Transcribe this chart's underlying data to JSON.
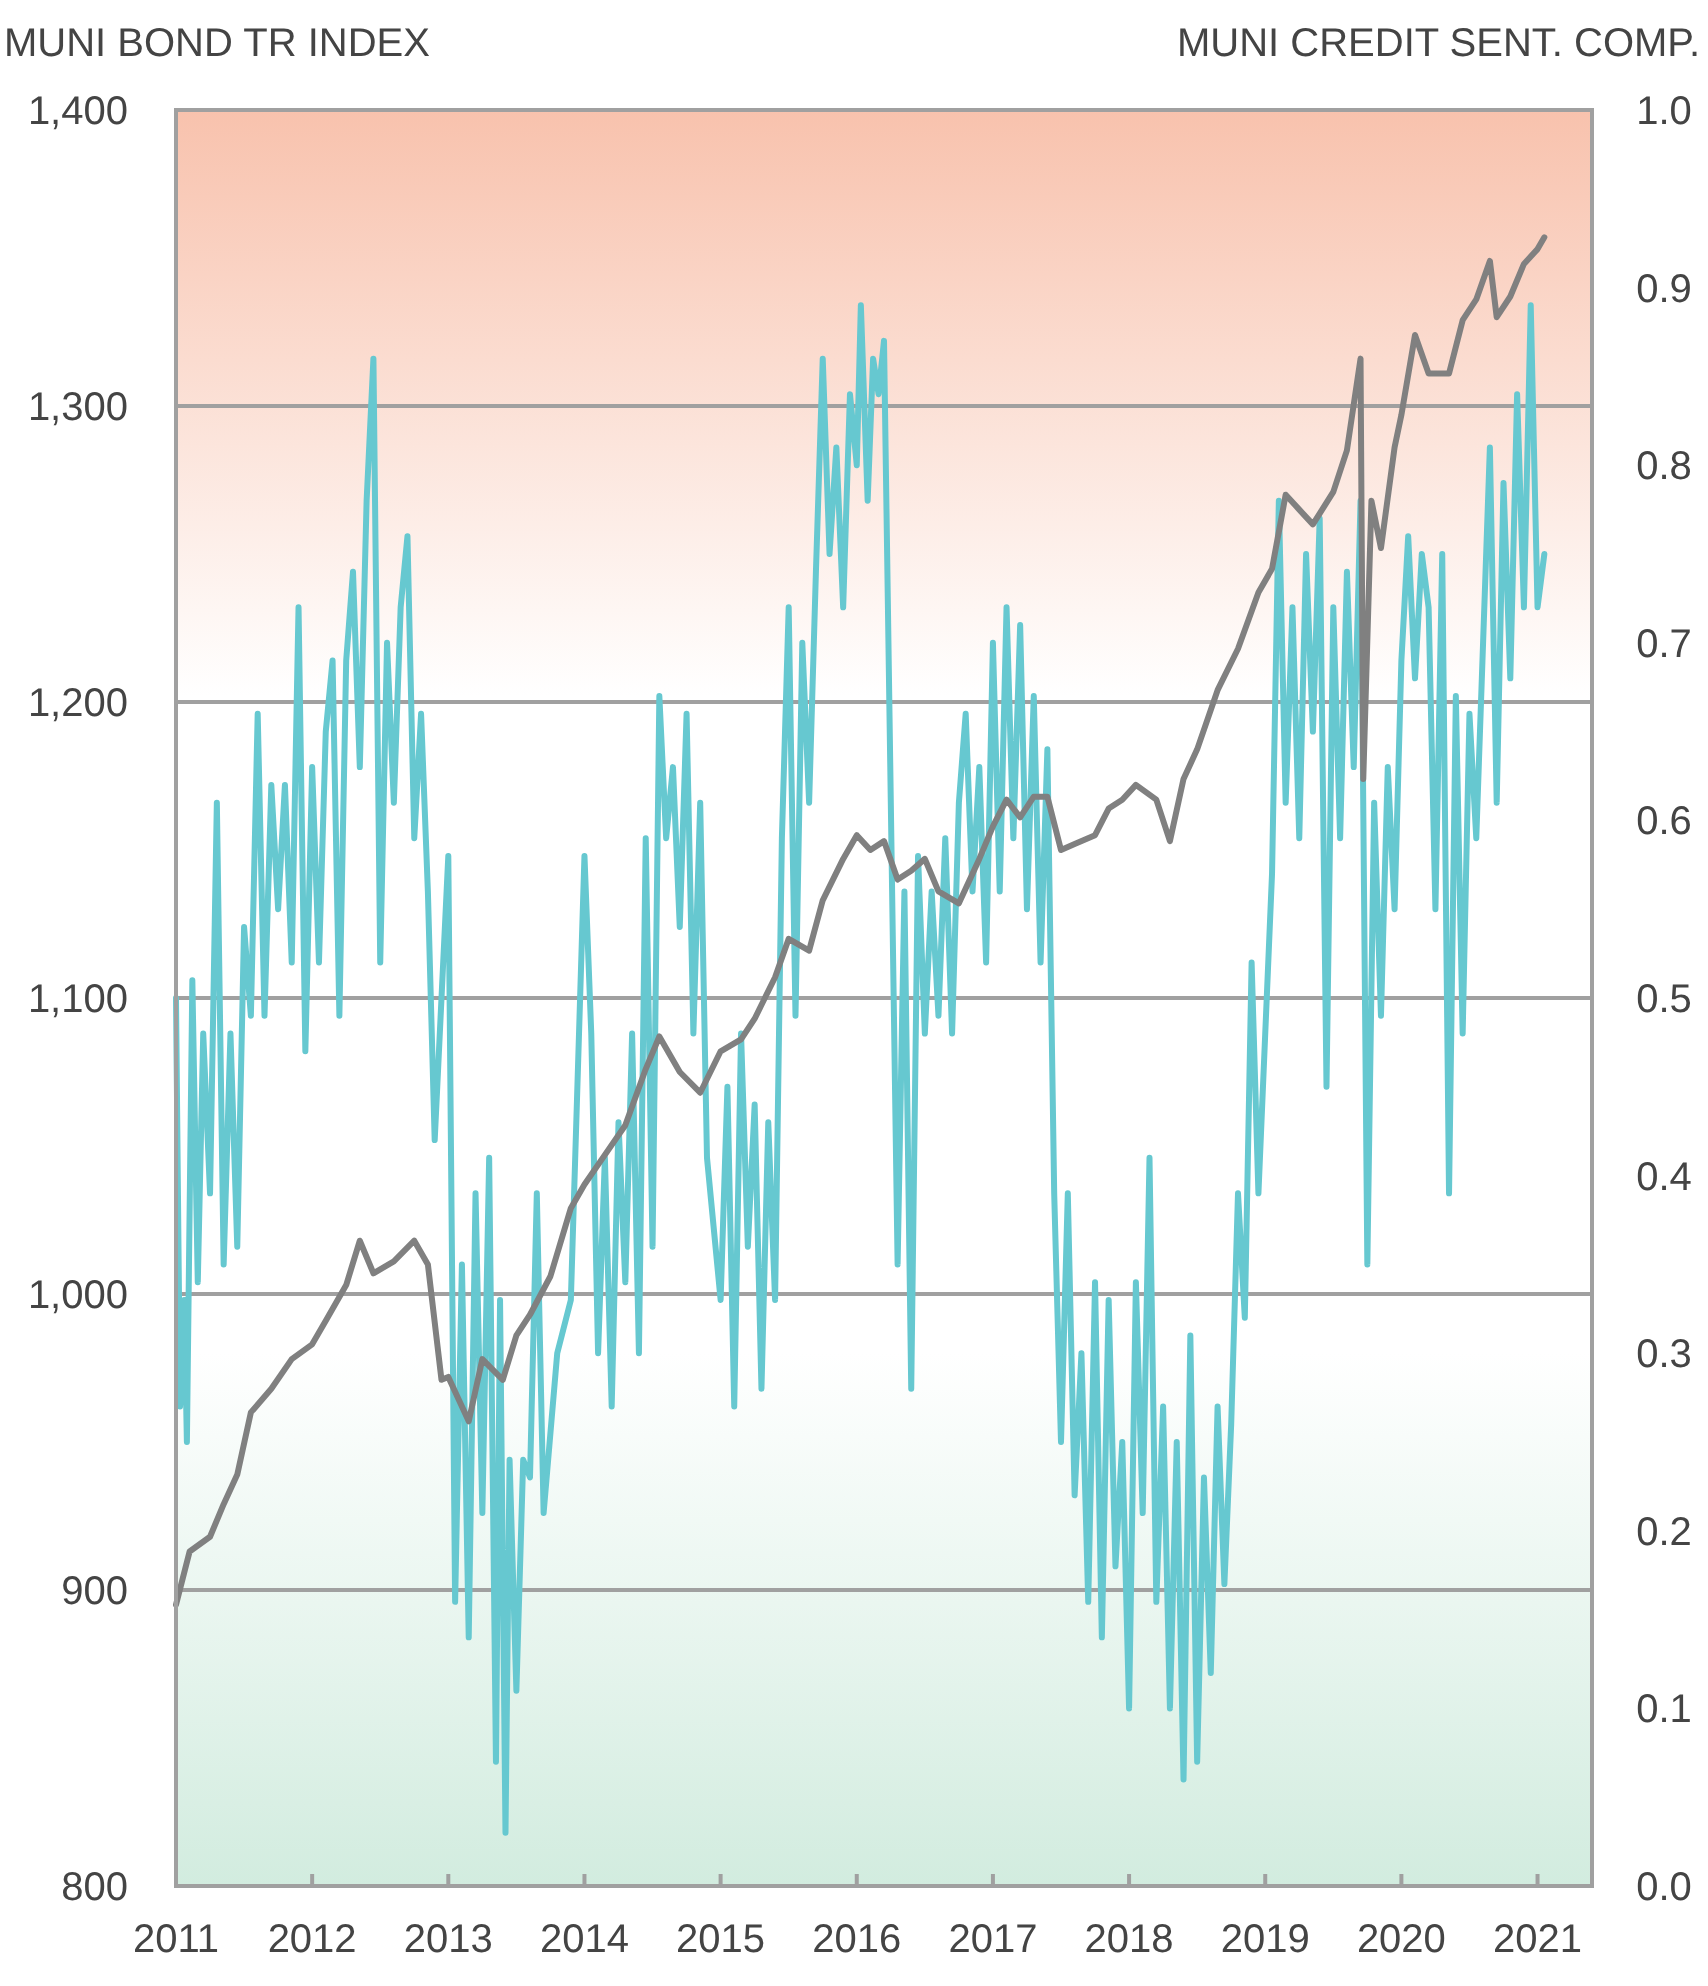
{
  "chart_data": {
    "type": "line",
    "ylabel": "MUNI BOND TR INDEX",
    "y2label": "MUNI CREDIT SENT. COMP.",
    "xlim": [
      2011,
      2021.4
    ],
    "xticks": [
      2011,
      2012,
      2013,
      2014,
      2015,
      2016,
      2017,
      2018,
      2019,
      2020,
      2021
    ],
    "ylim": [
      800,
      1400
    ],
    "yticks": [
      800,
      900,
      {
        "value": 1000,
        "label": "1,000"
      },
      {
        "value": 1100,
        "label": "1,100"
      },
      {
        "value": 1200,
        "label": "1,200"
      },
      {
        "value": 1300,
        "label": "1,300"
      },
      {
        "value": 1400,
        "label": "1,400"
      }
    ],
    "y2lim": [
      0,
      1
    ],
    "y2ticks": [
      {
        "value": 0,
        "label": "0.0"
      },
      0.1,
      0.2,
      0.3,
      0.4,
      0.5,
      0.6,
      0.7,
      0.8,
      0.9,
      {
        "value": 1,
        "label": "1.0"
      }
    ],
    "grid": "y",
    "marker": "none",
    "line_style": "solid",
    "series": [
      {
        "color": "#66c8d0",
        "axis": "y2",
        "x": [
          2011,
          2011.03,
          2011.06,
          2011.08,
          2011.12,
          2011.16,
          2011.2,
          2011.25,
          2011.3,
          2011.35,
          2011.4,
          2011.45,
          2011.5,
          2011.55,
          2011.6,
          2011.65,
          2011.7,
          2011.75,
          2011.8,
          2011.85,
          2011.9,
          2011.95,
          2012,
          2012.05,
          2012.1,
          2012.15,
          2012.2,
          2012.25,
          2012.3,
          2012.35,
          2012.4,
          2012.45,
          2012.5,
          2012.55,
          2012.6,
          2012.65,
          2012.7,
          2012.75,
          2012.8,
          2012.85,
          2012.9,
          2012.95,
          2013,
          2013.05,
          2013.1,
          2013.15,
          2013.2,
          2013.25,
          2013.3,
          2013.35,
          2013.38,
          2013.42,
          2013.45,
          2013.5,
          2013.55,
          2013.6,
          2013.65,
          2013.7,
          2013.8,
          2013.9,
          2014,
          2014.05,
          2014.1,
          2014.15,
          2014.2,
          2014.25,
          2014.3,
          2014.35,
          2014.4,
          2014.45,
          2014.5,
          2014.55,
          2014.6,
          2014.65,
          2014.7,
          2014.75,
          2014.8,
          2014.85,
          2014.9,
          2015,
          2015.05,
          2015.1,
          2015.15,
          2015.2,
          2015.25,
          2015.3,
          2015.35,
          2015.4,
          2015.45,
          2015.5,
          2015.55,
          2015.6,
          2015.65,
          2015.7,
          2015.75,
          2015.8,
          2015.85,
          2015.9,
          2015.95,
          2016,
          2016.03,
          2016.08,
          2016.12,
          2016.16,
          2016.2,
          2016.25,
          2016.3,
          2016.35,
          2016.4,
          2016.45,
          2016.5,
          2016.55,
          2016.6,
          2016.65,
          2016.7,
          2016.75,
          2016.8,
          2016.85,
          2016.9,
          2016.95,
          2017,
          2017.05,
          2017.1,
          2017.15,
          2017.2,
          2017.25,
          2017.3,
          2017.35,
          2017.4,
          2017.45,
          2017.5,
          2017.55,
          2017.6,
          2017.65,
          2017.7,
          2017.75,
          2017.8,
          2017.85,
          2017.9,
          2017.95,
          2018,
          2018.05,
          2018.1,
          2018.15,
          2018.2,
          2018.25,
          2018.3,
          2018.35,
          2018.4,
          2018.45,
          2018.5,
          2018.55,
          2018.6,
          2018.65,
          2018.7,
          2018.75,
          2018.8,
          2018.85,
          2018.9,
          2018.95,
          2019,
          2019.05,
          2019.1,
          2019.15,
          2019.2,
          2019.25,
          2019.3,
          2019.35,
          2019.4,
          2019.45,
          2019.5,
          2019.55,
          2019.6,
          2019.65,
          2019.7,
          2019.75,
          2019.8,
          2019.85,
          2019.9,
          2019.95,
          2020,
          2020.05,
          2020.1,
          2020.15,
          2020.2,
          2020.25,
          2020.3,
          2020.35,
          2020.4,
          2020.45,
          2020.5,
          2020.55,
          2020.6,
          2020.65,
          2020.7,
          2020.75,
          2020.8,
          2020.85,
          2020.9,
          2020.95,
          2021,
          2021.05
        ],
        "values": [
          0.5,
          0.27,
          0.33,
          0.25,
          0.51,
          0.34,
          0.48,
          0.39,
          0.61,
          0.35,
          0.48,
          0.36,
          0.54,
          0.49,
          0.66,
          0.49,
          0.62,
          0.55,
          0.62,
          0.52,
          0.72,
          0.47,
          0.63,
          0.52,
          0.65,
          0.69,
          0.49,
          0.69,
          0.74,
          0.63,
          0.78,
          0.86,
          0.52,
          0.7,
          0.61,
          0.72,
          0.76,
          0.59,
          0.66,
          0.56,
          0.42,
          0.5,
          0.58,
          0.16,
          0.35,
          0.14,
          0.39,
          0.21,
          0.41,
          0.07,
          0.33,
          0.03,
          0.24,
          0.11,
          0.24,
          0.23,
          0.39,
          0.21,
          0.3,
          0.33,
          0.58,
          0.48,
          0.3,
          0.41,
          0.27,
          0.43,
          0.34,
          0.48,
          0.3,
          0.59,
          0.36,
          0.67,
          0.59,
          0.63,
          0.54,
          0.66,
          0.48,
          0.61,
          0.41,
          0.33,
          0.45,
          0.27,
          0.48,
          0.36,
          0.44,
          0.28,
          0.43,
          0.33,
          0.59,
          0.72,
          0.49,
          0.7,
          0.61,
          0.74,
          0.86,
          0.75,
          0.81,
          0.72,
          0.84,
          0.8,
          0.89,
          0.78,
          0.86,
          0.84,
          0.87,
          0.61,
          0.35,
          0.56,
          0.28,
          0.58,
          0.48,
          0.56,
          0.49,
          0.59,
          0.48,
          0.61,
          0.66,
          0.56,
          0.63,
          0.52,
          0.7,
          0.56,
          0.72,
          0.59,
          0.71,
          0.55,
          0.67,
          0.52,
          0.64,
          0.39,
          0.25,
          0.39,
          0.22,
          0.3,
          0.16,
          0.34,
          0.14,
          0.33,
          0.18,
          0.25,
          0.1,
          0.34,
          0.21,
          0.41,
          0.16,
          0.27,
          0.1,
          0.25,
          0.06,
          0.31,
          0.07,
          0.23,
          0.12,
          0.27,
          0.17,
          0.26,
          0.39,
          0.32,
          0.52,
          0.39,
          0.48,
          0.57,
          0.78,
          0.61,
          0.72,
          0.59,
          0.75,
          0.65,
          0.77,
          0.45,
          0.72,
          0.59,
          0.74,
          0.63,
          0.78,
          0.35,
          0.61,
          0.49,
          0.63,
          0.55,
          0.69,
          0.76,
          0.68,
          0.75,
          0.72,
          0.55,
          0.75,
          0.39,
          0.67,
          0.48,
          0.66,
          0.59,
          0.7,
          0.81,
          0.61,
          0.79,
          0.68,
          0.84,
          0.72,
          0.89,
          0.72,
          0.75
        ]
      },
      {
        "color": "#808080",
        "x": [
          2011,
          2011.1,
          2011.25,
          2011.35,
          2011.45,
          2011.55,
          2011.7,
          2011.85,
          2012,
          2012.1,
          2012.25,
          2012.35,
          2012.45,
          2012.6,
          2012.75,
          2012.85,
          2012.95,
          2013,
          2013.15,
          2013.25,
          2013.4,
          2013.5,
          2013.6,
          2013.75,
          2013.9,
          2014,
          2014.15,
          2014.3,
          2014.45,
          2014.55,
          2014.7,
          2014.85,
          2015,
          2015.15,
          2015.25,
          2015.4,
          2015.5,
          2015.65,
          2015.75,
          2015.9,
          2016,
          2016.1,
          2016.2,
          2016.3,
          2016.4,
          2016.5,
          2016.6,
          2016.75,
          2016.9,
          2017,
          2017.1,
          2017.2,
          2017.3,
          2017.4,
          2017.5,
          2017.6,
          2017.75,
          2017.85,
          2017.95,
          2018.05,
          2018.2,
          2018.3,
          2018.4,
          2018.5,
          2018.65,
          2018.8,
          2018.95,
          2019.05,
          2019.15,
          2019.25,
          2019.35,
          2019.5,
          2019.6,
          2019.7,
          2019.72,
          2019.78,
          2019.85,
          2019.95,
          2020,
          2020.1,
          2020.2,
          2020.35,
          2020.45,
          2020.55,
          2020.65,
          2020.7,
          2020.8,
          2020.9,
          2021,
          2021.05
        ],
        "values": [
          895,
          913,
          918,
          929,
          939,
          960,
          968,
          978,
          983,
          991,
          1003,
          1018,
          1007,
          1011,
          1018,
          1010,
          971,
          972,
          957,
          978,
          971,
          986,
          993,
          1006,
          1029,
          1037,
          1047,
          1057,
          1076,
          1087,
          1075,
          1068,
          1082,
          1086,
          1093,
          1107,
          1120,
          1116,
          1133,
          1147,
          1155,
          1150,
          1153,
          1140,
          1143,
          1147,
          1136,
          1132,
          1147,
          1158,
          1167,
          1161,
          1168,
          1168,
          1150,
          1152,
          1155,
          1164,
          1167,
          1172,
          1167,
          1153,
          1174,
          1184,
          1204,
          1218,
          1237,
          1245,
          1270,
          1265,
          1260,
          1271,
          1285,
          1316,
          1174,
          1268,
          1252,
          1286,
          1297,
          1324,
          1311,
          1311,
          1329,
          1336,
          1349,
          1330,
          1337,
          1348,
          1353,
          1357
        ]
      }
    ]
  }
}
